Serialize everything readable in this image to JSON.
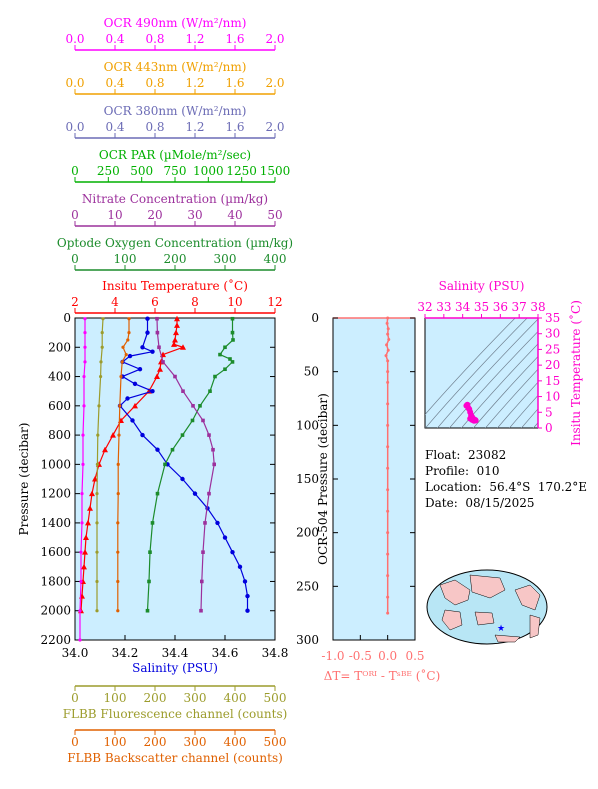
{
  "float_info": {
    "float": "Float:  23082",
    "profile": "Profile:  010",
    "location": "Location:  56.4°S  170.2°E",
    "date": "Date:  08/15/2025"
  },
  "colors": {
    "ocr490": "#ff00ff",
    "ocr443": "#f0a000",
    "ocr380": "#6b6bb5",
    "par": "#00b000",
    "nitrate": "#9c309c",
    "oxygen": "#1c8c2c",
    "temperature": "#ff0000",
    "salinity": "#0000dd",
    "fluorescence": "#9c9c2c",
    "backscatter": "#e06000",
    "plot_background": "#cceeff",
    "dt_series": "#ff7070",
    "ts_marker": "#ff00cc"
  },
  "chart_data": [
    {
      "type": "line",
      "id": "main-profile",
      "ylabel": "Pressure (decibar)",
      "ylim": [
        2200,
        0
      ],
      "yticks": [
        0,
        200,
        400,
        600,
        800,
        1000,
        1200,
        1400,
        1600,
        1800,
        2000,
        2200
      ],
      "grid": false,
      "axes": {
        "ocr490": {
          "label": "OCR 490nm (W/m²/nm)",
          "ticks": [
            "0.0",
            "0.4",
            "0.8",
            "1.2",
            "1.6",
            "2.0"
          ],
          "range": [
            0,
            2
          ]
        },
        "ocr443": {
          "label": "OCR 443nm (W/m²/nm)",
          "ticks": [
            "0.0",
            "0.4",
            "0.8",
            "1.2",
            "1.6",
            "2.0"
          ],
          "range": [
            0,
            2
          ]
        },
        "ocr380": {
          "label": "OCR 380nm (W/m²/nm)",
          "ticks": [
            "0.0",
            "0.4",
            "0.8",
            "1.2",
            "1.6",
            "2.0"
          ],
          "range": [
            0,
            2
          ]
        },
        "par": {
          "label": "OCR PAR (µMole/m²/sec)",
          "ticks": [
            "0",
            "250",
            "500",
            "750",
            "1000",
            "1250",
            "1500"
          ],
          "range": [
            0,
            1500
          ]
        },
        "nitrate": {
          "label": "Nitrate Concentration (µm/kg)",
          "ticks": [
            "0",
            "10",
            "20",
            "30",
            "40",
            "50"
          ],
          "range": [
            0,
            50
          ]
        },
        "oxygen": {
          "label": "Optode Oxygen Concentration (µm/kg)",
          "ticks": [
            "0",
            "100",
            "200",
            "300",
            "400"
          ],
          "range": [
            0,
            400
          ]
        },
        "temperature": {
          "label": "Insitu Temperature (˚C)",
          "ticks": [
            "2",
            "4",
            "6",
            "8",
            "10",
            "12"
          ],
          "range": [
            2,
            12
          ]
        },
        "salinity": {
          "label": "Salinity (PSU)",
          "ticks": [
            "34.0",
            "34.2",
            "34.4",
            "34.6",
            "34.8"
          ],
          "range": [
            34.0,
            34.8
          ]
        },
        "fluorescence": {
          "label": "FLBB Fluorescence channel (counts)",
          "ticks": [
            "0",
            "100",
            "200",
            "300",
            "400",
            "500"
          ],
          "range": [
            0,
            500
          ]
        },
        "backscatter": {
          "label": "FLBB Backscatter channel (counts)",
          "ticks": [
            "0",
            "100",
            "200",
            "300",
            "400",
            "500"
          ],
          "range": [
            0,
            500
          ]
        }
      },
      "series": [
        {
          "name": "Insitu Temperature",
          "axis": "temperature",
          "marker": "triangle",
          "pressure": [
            5,
            50,
            100,
            150,
            180,
            200,
            250,
            300,
            350,
            400,
            500,
            600,
            700,
            800,
            900,
            1000,
            1100,
            1200,
            1300,
            1400,
            1500,
            1600,
            1700,
            1800,
            1900,
            2000
          ],
          "values": [
            7.1,
            7.1,
            7.05,
            7.0,
            6.95,
            7.4,
            6.4,
            6.3,
            6.25,
            6.1,
            5.7,
            5.0,
            4.3,
            3.9,
            3.5,
            3.2,
            3.0,
            2.85,
            2.75,
            2.65,
            2.55,
            2.5,
            2.45,
            2.4,
            2.35,
            2.3
          ]
        },
        {
          "name": "Salinity",
          "axis": "salinity",
          "marker": "circle",
          "pressure": [
            5,
            100,
            200,
            230,
            260,
            300,
            350,
            400,
            450,
            500,
            550,
            600,
            700,
            800,
            900,
            1000,
            1100,
            1200,
            1300,
            1400,
            1500,
            1600,
            1700,
            1800,
            1900,
            2000
          ],
          "values": [
            34.29,
            34.29,
            34.27,
            34.31,
            34.22,
            34.19,
            34.26,
            34.19,
            34.24,
            34.31,
            34.21,
            34.18,
            34.23,
            34.27,
            34.33,
            34.37,
            34.43,
            34.48,
            34.53,
            34.57,
            34.6,
            34.63,
            34.66,
            34.68,
            34.69,
            34.69
          ]
        },
        {
          "name": "Optode Oxygen Concentration",
          "axis": "oxygen",
          "marker": "square",
          "pressure": [
            5,
            100,
            150,
            200,
            250,
            280,
            300,
            350,
            400,
            500,
            600,
            700,
            800,
            900,
            1000,
            1200,
            1400,
            1600,
            1800,
            2000
          ],
          "values": [
            315,
            315,
            316,
            300,
            290,
            310,
            315,
            300,
            280,
            270,
            250,
            235,
            215,
            195,
            180,
            165,
            155,
            150,
            148,
            145
          ]
        },
        {
          "name": "Nitrate Concentration",
          "axis": "nitrate",
          "marker": "square",
          "pressure": [
            5,
            100,
            200,
            300,
            400,
            500,
            600,
            700,
            800,
            900,
            1000,
            1200,
            1400,
            1600,
            1800,
            2000
          ],
          "values": [
            20.5,
            20.6,
            21,
            22,
            25,
            27,
            29.5,
            32,
            33.5,
            34.5,
            34.8,
            33.5,
            32.5,
            32,
            31.7,
            31.5
          ]
        },
        {
          "name": "OCR 490nm",
          "axis": "ocr490",
          "marker": "dot",
          "pressure": [
            5,
            100,
            200,
            300,
            400,
            600,
            800,
            1000,
            1200,
            1400,
            1600,
            1800,
            2000,
            2200
          ],
          "values": [
            0.1,
            0.1,
            0.1,
            0.1,
            0.09,
            0.09,
            0.08,
            0.08,
            0.07,
            0.07,
            0.06,
            0.06,
            0.05,
            0.05
          ]
        },
        {
          "name": "FLBB Fluorescence channel",
          "axis": "fluorescence",
          "marker": "dot",
          "pressure": [
            5,
            100,
            200,
            300,
            400,
            600,
            800,
            1000,
            1200,
            1400,
            1600,
            1800,
            2000
          ],
          "values": [
            70,
            68,
            68,
            65,
            64,
            60,
            57,
            56,
            55,
            55,
            55,
            55,
            55
          ]
        },
        {
          "name": "FLBB Backscatter channel",
          "axis": "backscatter",
          "marker": "dot",
          "pressure": [
            5,
            100,
            150,
            200,
            250,
            300,
            400,
            600,
            800,
            1000,
            1200,
            1400,
            1600,
            1800,
            2000
          ],
          "values": [
            135,
            135,
            132,
            120,
            128,
            118,
            115,
            112,
            110,
            108,
            108,
            107,
            107,
            107,
            107
          ]
        }
      ]
    },
    {
      "type": "line",
      "id": "delta-t",
      "ylabel": "OCR-504 Pressure (decibar)",
      "xlabel": "ΔT= Tᴼᴿᴵ - Tˢᴮᴱ (˚C)",
      "xticks": [
        "-1.0",
        "-0.5",
        "0.0",
        "0.5"
      ],
      "xlim": [
        -1.0,
        0.5
      ],
      "yticks": [
        0,
        50,
        100,
        150,
        200,
        250,
        300
      ],
      "ylim": [
        300,
        0
      ],
      "series": [
        {
          "name": "ΔT",
          "pressure": [
            0,
            5,
            10,
            15,
            20,
            25,
            30,
            35,
            40,
            50,
            60,
            80,
            100,
            120,
            140,
            160,
            180,
            200,
            220,
            240,
            260,
            275
          ],
          "values": [
            0.0,
            -0.01,
            0.01,
            0.0,
            0.02,
            -0.02,
            0.01,
            -0.03,
            0.0,
            0.0,
            0.0,
            0.0,
            0.0,
            0.0,
            0.0,
            0.0,
            0.0,
            0.0,
            0.0,
            0.0,
            0.0,
            0.0
          ]
        }
      ]
    },
    {
      "type": "scatter",
      "id": "ts-diagram",
      "xlabel": "Salinity (PSU)",
      "ylabel": "Insitu Temperature (˚C)",
      "xticks": [
        "32",
        "33",
        "34",
        "35",
        "36",
        "37",
        "38"
      ],
      "xlim": [
        32,
        38
      ],
      "yticks": [
        "0",
        "5",
        "10",
        "15",
        "20",
        "25",
        "30",
        "35"
      ],
      "ylim": [
        0,
        35
      ],
      "points": {
        "salinity": [
          34.2,
          34.25,
          34.3,
          34.35,
          34.4,
          34.45,
          34.5,
          34.55,
          34.6,
          34.65,
          34.68,
          34.69,
          34.6,
          34.5,
          34.4
        ],
        "temperature": [
          7.1,
          7.4,
          6.4,
          6.0,
          5.0,
          4.0,
          3.5,
          3.0,
          2.8,
          2.6,
          2.5,
          2.4,
          2.3,
          2.6,
          3.0
        ]
      }
    }
  ]
}
